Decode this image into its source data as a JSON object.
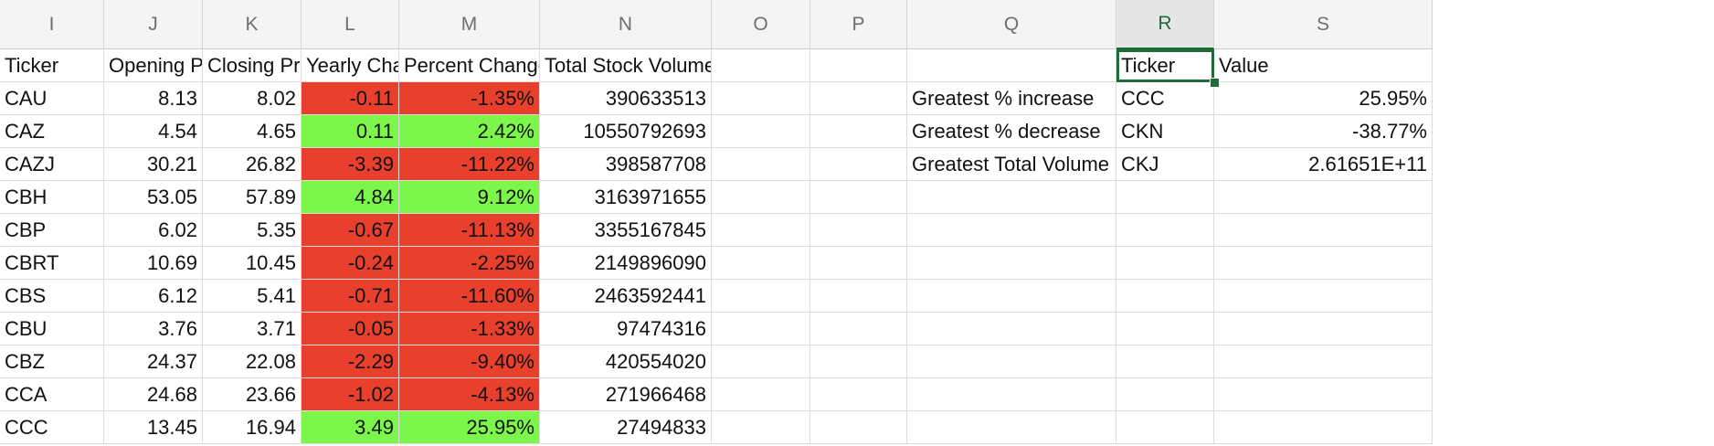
{
  "columns": [
    "I",
    "J",
    "K",
    "L",
    "M",
    "N",
    "O",
    "P",
    "Q",
    "R",
    "S"
  ],
  "selected_column": "R",
  "headers": [
    "Ticker",
    "Opening Pr",
    "Closing Pric",
    "Yearly Chan",
    "Percent Change",
    "Total Stock Volume"
  ],
  "rows": [
    {
      "ticker": "CAU",
      "open": "8.13",
      "close": "8.02",
      "yearly": "-0.11",
      "pct": "-1.35%",
      "volume": "390633513",
      "status": "negative"
    },
    {
      "ticker": "CAZ",
      "open": "4.54",
      "close": "4.65",
      "yearly": "0.11",
      "pct": "2.42%",
      "volume": "10550792693",
      "status": "positive"
    },
    {
      "ticker": "CAZJ",
      "open": "30.21",
      "close": "26.82",
      "yearly": "-3.39",
      "pct": "-11.22%",
      "volume": "398587708",
      "status": "negative"
    },
    {
      "ticker": "CBH",
      "open": "53.05",
      "close": "57.89",
      "yearly": "4.84",
      "pct": "9.12%",
      "volume": "3163971655",
      "status": "positive"
    },
    {
      "ticker": "CBP",
      "open": "6.02",
      "close": "5.35",
      "yearly": "-0.67",
      "pct": "-11.13%",
      "volume": "3355167845",
      "status": "negative"
    },
    {
      "ticker": "CBRT",
      "open": "10.69",
      "close": "10.45",
      "yearly": "-0.24",
      "pct": "-2.25%",
      "volume": "2149896090",
      "status": "negative"
    },
    {
      "ticker": "CBS",
      "open": "6.12",
      "close": "5.41",
      "yearly": "-0.71",
      "pct": "-11.60%",
      "volume": "2463592441",
      "status": "negative"
    },
    {
      "ticker": "CBU",
      "open": "3.76",
      "close": "3.71",
      "yearly": "-0.05",
      "pct": "-1.33%",
      "volume": "97474316",
      "status": "negative"
    },
    {
      "ticker": "CBZ",
      "open": "24.37",
      "close": "22.08",
      "yearly": "-2.29",
      "pct": "-9.40%",
      "volume": "420554020",
      "status": "negative"
    },
    {
      "ticker": "CCA",
      "open": "24.68",
      "close": "23.66",
      "yearly": "-1.02",
      "pct": "-4.13%",
      "volume": "271966468",
      "status": "negative"
    },
    {
      "ticker": "CCC",
      "open": "13.45",
      "close": "16.94",
      "yearly": "3.49",
      "pct": "25.95%",
      "volume": "27494833",
      "status": "positive"
    }
  ],
  "summary": {
    "headers": {
      "ticker": "Ticker",
      "value": "Value"
    },
    "rows": [
      {
        "label": "Greatest % increase",
        "ticker": "CCC",
        "value": "25.95%"
      },
      {
        "label": "Greatest % decrease",
        "ticker": "CKN",
        "value": "-38.77%"
      },
      {
        "label": "Greatest Total Volume",
        "ticker": "CKJ",
        "value": "2.61651E+11"
      }
    ]
  },
  "colors": {
    "negative": "#e8402d",
    "positive": "#7cf64a",
    "selection": "#1f6b3a"
  }
}
